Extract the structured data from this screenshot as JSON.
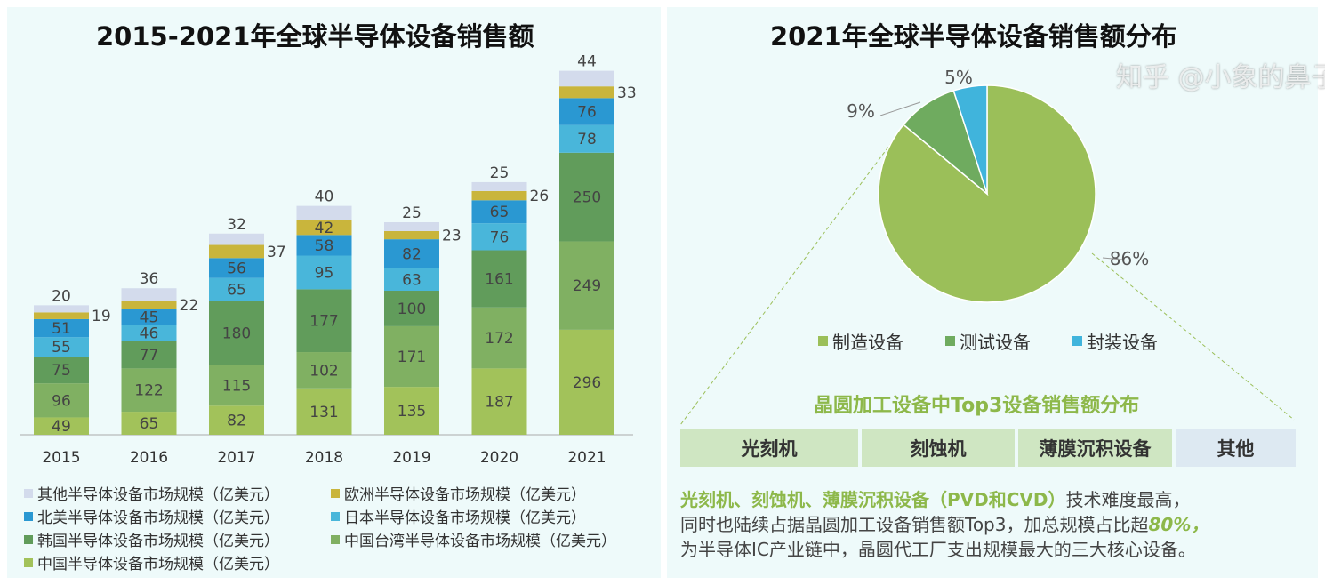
{
  "left": {
    "title": "2015-2021年全球半导体设备销售额"
  },
  "right": {
    "title": "2021年全球半导体设备销售额分布"
  },
  "chart_data": [
    {
      "type": "bar",
      "stacked": true,
      "title": "2015-2021年全球半导体设备销售额",
      "categories": [
        "2015",
        "2016",
        "2017",
        "2018",
        "2019",
        "2020",
        "2021"
      ],
      "series": [
        {
          "name": "中国半导体设备市场规模（亿美元）",
          "color": "#a2c25a",
          "values": [
            49,
            65,
            82,
            131,
            135,
            187,
            296
          ]
        },
        {
          "name": "中国台湾半导体设备市场规模（亿美元）",
          "color": "#80b062",
          "values": [
            96,
            122,
            115,
            102,
            171,
            172,
            249
          ]
        },
        {
          "name": "韩国半导体设备市场规模（亿美元）",
          "color": "#619c5b",
          "values": [
            75,
            77,
            180,
            177,
            100,
            161,
            250
          ]
        },
        {
          "name": "日本半导体设备市场规模（亿美元）",
          "color": "#49b6da",
          "values": [
            55,
            46,
            65,
            95,
            63,
            76,
            78
          ]
        },
        {
          "name": "北美半导体设备市场规模（亿美元）",
          "color": "#2a98d2",
          "values": [
            51,
            45,
            56,
            58,
            82,
            65,
            76
          ]
        },
        {
          "name": "欧洲半导体设备市场规模（亿美元）",
          "color": "#c9b53c",
          "values": [
            19,
            22,
            37,
            42,
            23,
            26,
            33
          ]
        },
        {
          "name": "其他半导体设备市场规模（亿美元）",
          "color": "#d3dbec",
          "values": [
            20,
            36,
            32,
            40,
            25,
            25,
            44
          ]
        }
      ],
      "legend_order": [
        6,
        5,
        4,
        3,
        2,
        1,
        0
      ],
      "legend": "bottom"
    },
    {
      "type": "pie",
      "title": "2021年全球半导体设备销售额分布",
      "slices": [
        {
          "name": "制造设备",
          "value": 86,
          "label": "86%",
          "color": "#9bbf59"
        },
        {
          "name": "测试设备",
          "value": 9,
          "label": "9%",
          "color": "#6fab5f"
        },
        {
          "name": "封装设备",
          "value": 5,
          "label": "5%",
          "color": "#40b4dc"
        }
      ],
      "legend": "bottom"
    }
  ],
  "sub": {
    "title": "晶圆加工设备中Top3设备销售额分布",
    "cells": [
      "光刻机",
      "刻蚀机",
      "薄膜沉积设备",
      "其他"
    ],
    "p1_green": "光刻机、刻蚀机、薄膜沉积设备（PVD和CVD）",
    "p1_rest": "技术难度最高，",
    "p2": "同时也陆续占据晶圆加工设备销售额Top3，加总规模占比超",
    "p2_green": "80%，",
    "p3": "为半导体IC产业链中，晶圆代工厂支出规模最大的三大核心设备。"
  },
  "watermark": "知乎 @小象的鼻子"
}
